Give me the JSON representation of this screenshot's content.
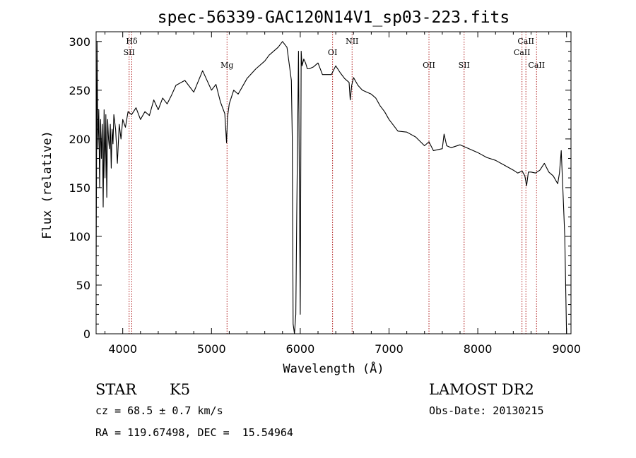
{
  "chart_data": {
    "type": "line",
    "title": "spec-56339-GAC120N14V1_sp03-223.fits",
    "xlabel": "Wavelength (Å)",
    "ylabel": "Flux (relative)",
    "xlim": [
      3700,
      9050
    ],
    "ylim": [
      0,
      310
    ],
    "xticks": [
      4000,
      5000,
      6000,
      7000,
      8000,
      9000
    ],
    "yticks": [
      0,
      50,
      100,
      150,
      200,
      250,
      300
    ],
    "grid": false,
    "spectrum": {
      "x": [
        3700,
        3710,
        3720,
        3730,
        3740,
        3750,
        3760,
        3770,
        3780,
        3790,
        3800,
        3810,
        3820,
        3830,
        3840,
        3850,
        3860,
        3870,
        3880,
        3890,
        3900,
        3920,
        3940,
        3960,
        3980,
        4000,
        4030,
        4060,
        4100,
        4150,
        4200,
        4250,
        4300,
        4350,
        4400,
        4450,
        4500,
        4550,
        4600,
        4700,
        4800,
        4900,
        5000,
        5050,
        5100,
        5150,
        5170,
        5180,
        5200,
        5250,
        5300,
        5400,
        5500,
        5600,
        5650,
        5700,
        5750,
        5800,
        5850,
        5880,
        5900,
        5910,
        5920,
        5935,
        5950,
        5960,
        5980,
        6000,
        6010,
        6020,
        6040,
        6060,
        6080,
        6100,
        6150,
        6200,
        6250,
        6300,
        6350,
        6400,
        6450,
        6500,
        6550,
        6563,
        6580,
        6600,
        6650,
        6700,
        6750,
        6800,
        6850,
        6900,
        6950,
        7000,
        7100,
        7200,
        7300,
        7400,
        7450,
        7500,
        7600,
        7620,
        7650,
        7700,
        7800,
        7900,
        8000,
        8100,
        8200,
        8300,
        8400,
        8450,
        8500,
        8530,
        8550,
        8570,
        8600,
        8650,
        8700,
        8750,
        8800,
        8850,
        8900,
        8920,
        8940,
        8960,
        8980,
        9000
      ],
      "y": [
        60,
        300,
        190,
        230,
        150,
        220,
        180,
        215,
        130,
        230,
        160,
        225,
        140,
        220,
        200,
        190,
        215,
        170,
        210,
        195,
        225,
        210,
        175,
        215,
        200,
        220,
        212,
        228,
        225,
        232,
        220,
        228,
        224,
        240,
        230,
        242,
        236,
        245,
        255,
        260,
        248,
        270,
        250,
        256,
        238,
        226,
        196,
        222,
        236,
        250,
        246,
        262,
        272,
        280,
        286,
        290,
        294,
        300,
        294,
        274,
        260,
        200,
        10,
        0,
        20,
        120,
        290,
        20,
        290,
        275,
        282,
        278,
        272,
        272,
        274,
        278,
        266,
        266,
        266,
        275,
        268,
        262,
        258,
        240,
        255,
        263,
        255,
        250,
        248,
        246,
        242,
        234,
        228,
        220,
        208,
        207,
        202,
        193,
        197,
        188,
        190,
        205,
        193,
        191,
        194,
        190,
        186,
        181,
        178,
        173,
        168,
        165,
        167,
        162,
        152,
        166,
        166,
        165,
        168,
        175,
        166,
        162,
        154,
        165,
        188,
        145,
        100,
        0
      ]
    },
    "lines": [
      {
        "name": "Hδ",
        "wavelength": 4102,
        "row": 1
      },
      {
        "name": "SII",
        "wavelength": 4072,
        "row": 2
      },
      {
        "name": "Mg",
        "wavelength": 5175,
        "row": 3
      },
      {
        "name": "OI",
        "wavelength": 6364,
        "row": 2
      },
      {
        "name": "NII",
        "wavelength": 6584,
        "row": 1
      },
      {
        "name": "OII",
        "wavelength": 7450,
        "row": 3
      },
      {
        "name": "SII",
        "wavelength": 7846,
        "row": 3
      },
      {
        "name": "CaII",
        "wavelength": 8542,
        "row": 1
      },
      {
        "name": "CaII",
        "wavelength": 8498,
        "row": 2
      },
      {
        "name": "CaII",
        "wavelength": 8662,
        "row": 3
      }
    ],
    "line_color": "#b22222"
  },
  "footer": {
    "object_class": "STAR",
    "subclass": "K5",
    "redshift": "cz = 68.5 ± 0.7 km/s",
    "coords": "RA = 119.67498, DEC =  15.54964",
    "survey": "LAMOST DR2",
    "obs_date": "Obs-Date: 20130215"
  }
}
